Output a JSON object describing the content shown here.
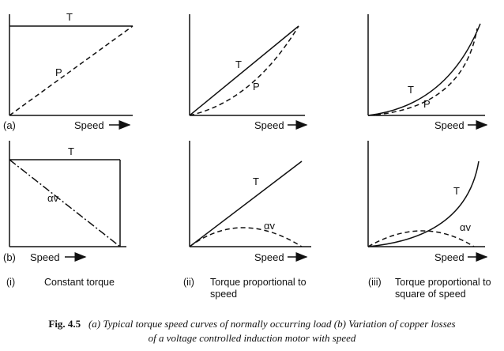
{
  "panels": {
    "a1": {
      "tag": "(a)",
      "xlabel": "Speed",
      "curves": [
        "T",
        "P"
      ]
    },
    "a2": {
      "xlabel": "Speed",
      "curves": [
        "T",
        "P"
      ]
    },
    "a3": {
      "xlabel": "Speed",
      "curves": [
        "T",
        "P"
      ]
    },
    "b1": {
      "tag": "(b)",
      "xlabel": "Speed",
      "curves": [
        "T",
        "αv"
      ]
    },
    "b2": {
      "xlabel": "Speed",
      "curves": [
        "T",
        "αv"
      ]
    },
    "b3": {
      "xlabel": "Speed",
      "curves": [
        "T",
        "αv"
      ]
    }
  },
  "captions": [
    {
      "num": "(i)",
      "text": "Constant torque"
    },
    {
      "num": "(ii)",
      "text": "Torque proportional to speed"
    },
    {
      "num": "(iii)",
      "text": "Torque proportional to square of speed"
    }
  ],
  "figure": {
    "number": "Fig. 4.5",
    "line1": "(a) Typical torque speed curves of normally occurring load (b) Variation of copper losses",
    "line2": "of a voltage controlled induction motor with speed"
  },
  "colors": {
    "ink": "#111111",
    "paper": "#ffffff"
  }
}
